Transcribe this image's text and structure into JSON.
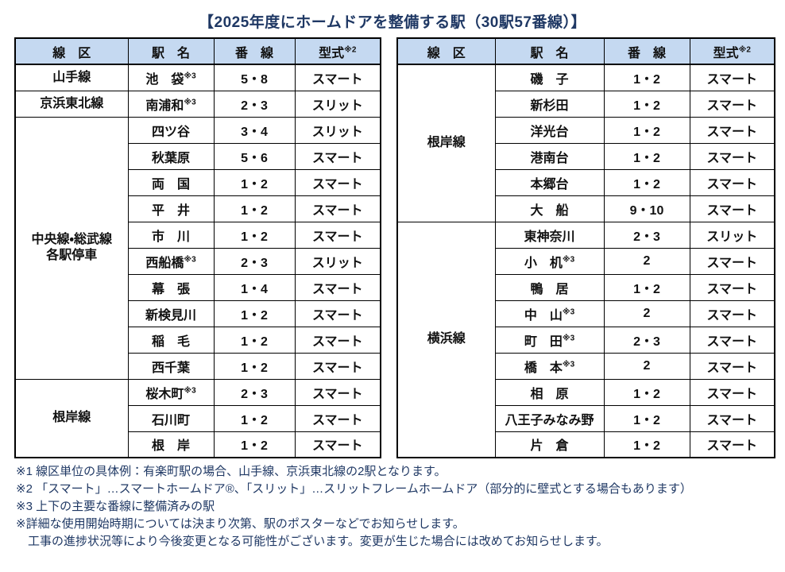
{
  "title": "【2025年度にホームドアを整備する駅（30駅57番線）】",
  "colors": {
    "header_bg": "#C5D9F1",
    "ink": "#1F3864",
    "table_ink": "#111111",
    "border": "#000000"
  },
  "columns": {
    "line": "線　区",
    "station": "駅　名",
    "tracks": "番　線",
    "type": "型式",
    "type_sup": "※2"
  },
  "left_table": {
    "rows": [
      {
        "line": "山手線",
        "station": "池　袋",
        "sup": "※3",
        "tracks": "5・8",
        "type": "スマート"
      },
      {
        "line": "京浜東北線",
        "station": "南浦和",
        "sup": "※3",
        "tracks": "2・3",
        "type": "スリット"
      },
      {
        "line": "中央線・総武線\n各駅停車",
        "station": "四ツ谷",
        "tracks": "3・4",
        "type": "スリット"
      },
      {
        "station": "秋葉原",
        "tracks": "5・6",
        "type": "スマート"
      },
      {
        "station": "両　国",
        "tracks": "1・2",
        "type": "スマート"
      },
      {
        "station": "平　井",
        "tracks": "1・2",
        "type": "スマート"
      },
      {
        "station": "市　川",
        "tracks": "1・2",
        "type": "スマート"
      },
      {
        "station": "西船橋",
        "sup": "※3",
        "tracks": "2・3",
        "type": "スリット"
      },
      {
        "station": "幕　張",
        "tracks": "1・4",
        "type": "スマート"
      },
      {
        "station": "新検見川",
        "tracks": "1・2",
        "type": "スマート"
      },
      {
        "station": "稲　毛",
        "tracks": "1・2",
        "type": "スマート"
      },
      {
        "station": "西千葉",
        "tracks": "1・2",
        "type": "スマート"
      },
      {
        "line": "根岸線",
        "station": "桜木町",
        "sup": "※3",
        "tracks": "2・3",
        "type": "スマート"
      },
      {
        "station": "石川町",
        "tracks": "1・2",
        "type": "スマート"
      },
      {
        "station": "根　岸",
        "tracks": "1・2",
        "type": "スマート"
      }
    ]
  },
  "right_table": {
    "rows": [
      {
        "line": "根岸線",
        "station": "磯　子",
        "tracks": "1・2",
        "type": "スマート"
      },
      {
        "station": "新杉田",
        "tracks": "1・2",
        "type": "スマート"
      },
      {
        "station": "洋光台",
        "tracks": "1・2",
        "type": "スマート"
      },
      {
        "station": "港南台",
        "tracks": "1・2",
        "type": "スマート"
      },
      {
        "station": "本郷台",
        "tracks": "1・2",
        "type": "スマート"
      },
      {
        "station": "大　船",
        "tracks": "9・10",
        "type": "スマート"
      },
      {
        "line": "横浜線",
        "station": "東神奈川",
        "tracks": "2・3",
        "type": "スリット"
      },
      {
        "station": "小　机",
        "sup": "※3",
        "tracks": "2",
        "type": "スマート"
      },
      {
        "station": "鴨　居",
        "tracks": "1・2",
        "type": "スマート"
      },
      {
        "station": "中　山",
        "sup": "※3",
        "tracks": "2",
        "type": "スマート"
      },
      {
        "station": "町　田",
        "sup": "※3",
        "tracks": "2・3",
        "type": "スマート"
      },
      {
        "station": "橋　本",
        "sup": "※3",
        "tracks": "2",
        "type": "スマート"
      },
      {
        "station": "相　原",
        "tracks": "1・2",
        "type": "スマート"
      },
      {
        "station": "八王子みなみ野",
        "tracks": "1・2",
        "type": "スマート"
      },
      {
        "station": "片　倉",
        "tracks": "1・2",
        "type": "スマート"
      }
    ]
  },
  "footnotes": [
    "※1 線区単位の具体例：有楽町駅の場合、山手線、京浜東北線の2駅となります。",
    "※2 「スマート」…スマートホームドア®、「スリット」…スリットフレームホームドア（部分的に壁式とする場合もあります）",
    "※3 上下の主要な番線に整備済みの駅",
    "※詳細な使用開始時期については決まり次第、駅のポスターなどでお知らせします。",
    "　工事の進捗状況等により今後変更となる可能性がございます。変更が生じた場合には改めてお知らせします。"
  ]
}
